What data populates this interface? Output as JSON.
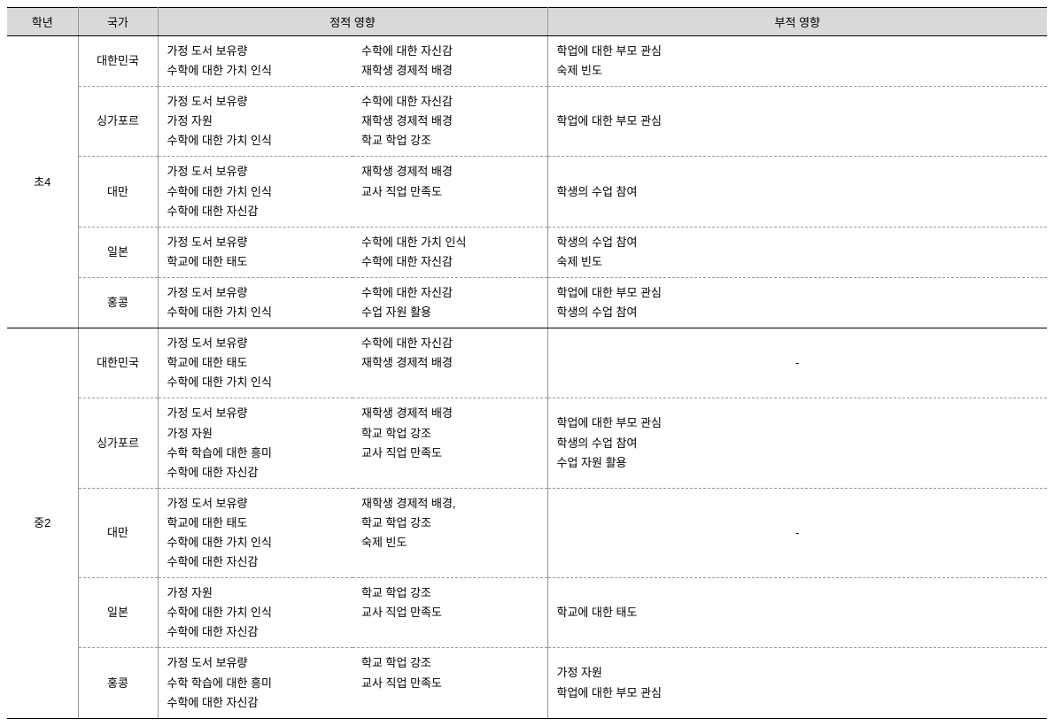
{
  "headers": {
    "grade": "학년",
    "country": "국가",
    "positive": "정적 영향",
    "negative": "부적 영향"
  },
  "grades": [
    {
      "name": "초4",
      "rows": [
        {
          "country": "대한민국",
          "pos_a": "가정 도서 보유량\n수학에 대한 가치 인식",
          "pos_b": "수학에 대한 자신감\n재학생 경제적 배경",
          "neg": "학업에 대한 부모 관심\n숙제 빈도"
        },
        {
          "country": "싱가포르",
          "pos_a": "가정 도서 보유량\n가정 자원\n수학에 대한 가치 인식",
          "pos_b": "수학에 대한 자신감\n재학생 경제적 배경\n학교 학업 강조",
          "neg": "학업에 대한 부모 관심"
        },
        {
          "country": "대만",
          "pos_a": "가정 도서 보유량\n수학에 대한 가치 인식\n수학에 대한 자신감",
          "pos_b": "재학생 경제적 배경\n교사 직업 만족도",
          "neg": "학생의 수업 참여"
        },
        {
          "country": "일본",
          "pos_a": "가정 도서 보유량\n학교에 대한 태도",
          "pos_b": "수학에 대한 가치 인식\n수학에 대한 자신감",
          "neg": "학생의 수업 참여\n숙제 빈도"
        },
        {
          "country": "홍콩",
          "pos_a": "가정 도서 보유량\n수학에 대한 가치 인식",
          "pos_b": "수학에 대한 자신감\n수업 자원 활용",
          "neg": "학업에 대한 부모 관심\n학생의 수업 참여"
        }
      ]
    },
    {
      "name": "중2",
      "rows": [
        {
          "country": "대한민국",
          "pos_a": "가정 도서 보유량\n학교에 대한 태도\n수학에 대한 가치 인식",
          "pos_b": "수학에 대한 자신감\n재학생 경제적 배경",
          "neg": "-",
          "neg_center": true
        },
        {
          "country": "싱가포르",
          "pos_a": "가정 도서 보유량\n가정 자원\n수학 학습에 대한 흥미\n수학에 대한 자신감",
          "pos_b": "재학생 경제적 배경\n학교 학업 강조\n교사 직업 만족도",
          "neg": "학업에 대한 부모 관심\n학생의 수업 참여\n수업 자원 활용"
        },
        {
          "country": "대만",
          "pos_a": "가정 도서 보유량\n학교에 대한 태도\n수학에 대한 가치 인식\n수학에 대한 자신감",
          "pos_b": "재학생 경제적 배경,\n학교 학업 강조\n숙제 빈도",
          "neg": "-",
          "neg_center": true
        },
        {
          "country": "일본",
          "pos_a": "가정 자원\n수학에 대한 가치 인식\n수학에 대한 자신감",
          "pos_b": "학교 학업 강조\n교사 직업 만족도",
          "neg": "학교에 대한 태도"
        },
        {
          "country": "홍콩",
          "pos_a": "가정 도서 보유량\n수학 학습에 대한 흥미\n수학에 대한 자신감",
          "pos_b": "학교 학업 강조\n교사 직업 만족도",
          "neg": "가정 자원\n학업에 대한 부모 관심"
        }
      ]
    }
  ]
}
